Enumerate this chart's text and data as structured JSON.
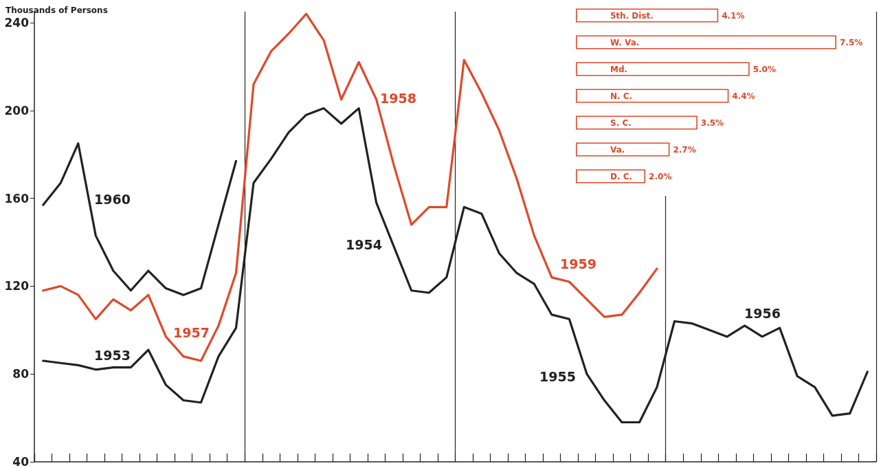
{
  "chart_data": [
    {
      "type": "line",
      "ylabel": "Thousands of Persons",
      "categories": [
        null,
        null,
        null,
        null,
        null,
        null,
        null,
        null,
        null,
        null,
        null,
        null,
        null,
        null,
        null,
        null,
        null,
        null,
        null,
        null,
        null,
        null,
        null,
        null,
        null,
        null,
        null,
        null,
        null,
        null,
        null,
        null,
        null,
        null,
        null,
        null,
        null,
        null,
        null,
        null,
        null,
        null,
        null,
        null,
        null,
        null,
        null,
        null
      ],
      "series": [
        {
          "color": "#222222",
          "values": [
            86,
            85,
            84,
            82,
            83,
            83,
            91,
            75,
            68,
            67,
            88,
            101,
            167,
            178,
            190,
            198,
            201,
            194,
            201,
            158,
            138,
            118,
            117,
            124,
            156,
            153,
            135,
            126,
            121,
            107,
            105,
            80,
            68,
            58,
            58,
            74,
            104,
            103,
            100,
            97,
            102,
            97,
            101,
            79,
            74,
            61,
            62,
            81
          ]
        },
        {
          "color": "#e0482a",
          "values": [
            118,
            120,
            116,
            105,
            114,
            109,
            116,
            97,
            88,
            86,
            102,
            126,
            212,
            227,
            235,
            244,
            232,
            205,
            222,
            205,
            175,
            148,
            156,
            156,
            223,
            208,
            191,
            169,
            143,
            124,
            122,
            114,
            106,
            107,
            117,
            128,
            null,
            null,
            null,
            null,
            null,
            null,
            null,
            null,
            null,
            null,
            null,
            null
          ]
        },
        {
          "color": "#222222",
          "values": [
            157,
            167,
            185,
            143,
            127,
            118,
            127,
            119,
            116,
            119,
            148,
            177,
            null,
            null,
            null,
            null,
            null,
            null,
            null,
            null,
            null,
            null,
            null,
            null,
            null,
            null,
            null,
            null,
            null,
            null,
            null,
            null,
            null,
            null,
            null,
            null,
            null,
            null,
            null,
            null,
            null,
            null,
            null,
            null,
            null,
            null,
            null,
            null
          ]
        }
      ],
      "annotations": [
        "1960",
        "1957",
        "1953",
        "1958",
        "1954",
        "1959",
        "1955",
        "1956"
      ],
      "ylim": [
        40,
        245
      ],
      "yticks": [
        40,
        80,
        120,
        160,
        200,
        240
      ],
      "grid": "x",
      "tick_labels": "y",
      "marker": "none",
      "line_style": "solid"
    },
    {
      "type": "bar",
      "orientation": "horizontal",
      "categories": [
        "5th. Dist.",
        "W. Va.",
        "Md.",
        "N. C.",
        "S. C.",
        "Va.",
        "D. C."
      ],
      "values": [
        4.1,
        7.5,
        5.0,
        4.4,
        3.5,
        2.7,
        2.0
      ],
      "value_labels": [
        "4.1%",
        "7.5%",
        "5.0%",
        "4.4%",
        "3.5%",
        "2.7%",
        "2.0%"
      ],
      "color": "#e0482a",
      "tick_labels": "y"
    }
  ]
}
